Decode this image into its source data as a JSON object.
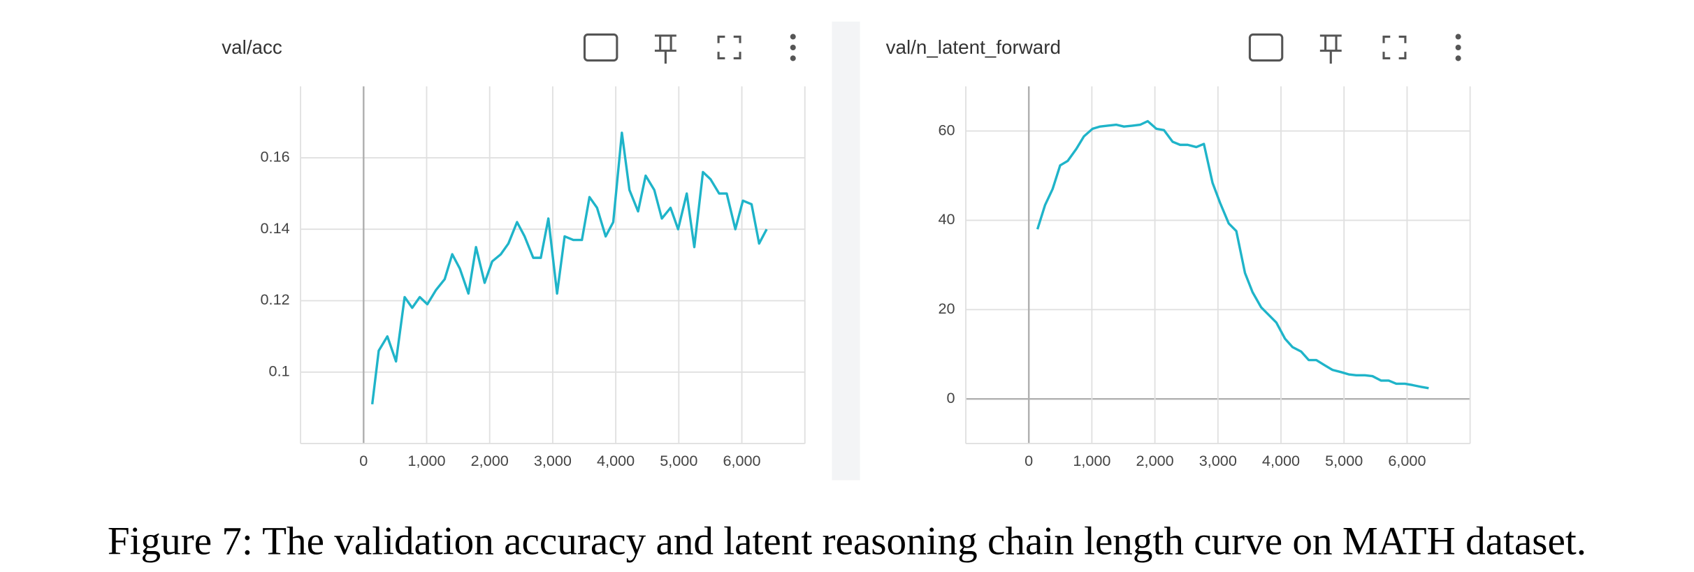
{
  "chart_data": [
    {
      "type": "line",
      "title": "val/acc",
      "color": "#1fb4c9",
      "grid": true,
      "x": [
        137,
        240,
        377,
        514,
        651,
        771,
        891,
        1011,
        1149,
        1286,
        1406,
        1526,
        1663,
        1783,
        1920,
        2040,
        2177,
        2297,
        2434,
        2554,
        2691,
        2811,
        2931,
        3069,
        3189,
        3326,
        3463,
        3583,
        3703,
        3840,
        3960,
        4097,
        4217,
        4354,
        4474,
        4611,
        4731,
        4869,
        4989,
        5126,
        5246,
        5383,
        5503,
        5640,
        5760,
        5897,
        6017,
        6154,
        6274,
        6394
      ],
      "values": [
        0.091,
        0.106,
        0.11,
        0.103,
        0.121,
        0.118,
        0.121,
        0.119,
        0.123,
        0.126,
        0.133,
        0.129,
        0.122,
        0.135,
        0.125,
        0.131,
        0.133,
        0.136,
        0.142,
        0.138,
        0.132,
        0.132,
        0.143,
        0.122,
        0.138,
        0.137,
        0.137,
        0.149,
        0.146,
        0.138,
        0.142,
        0.167,
        0.151,
        0.145,
        0.155,
        0.151,
        0.143,
        0.146,
        0.14,
        0.15,
        0.135,
        0.156,
        0.154,
        0.15,
        0.15,
        0.14,
        0.148,
        0.147,
        0.136,
        0.14
      ],
      "xlim": [
        -1000,
        7000
      ],
      "ylim": [
        0.08,
        0.18
      ],
      "xticks": [
        0,
        {
          "value": 1000,
          "label": "1,000"
        },
        {
          "value": 2000,
          "label": "2,000"
        },
        {
          "value": 3000,
          "label": "3,000"
        },
        {
          "value": 4000,
          "label": "4,000"
        },
        {
          "value": 5000,
          "label": "5,000"
        },
        {
          "value": 6000,
          "label": "6,000"
        }
      ],
      "yticks": [
        0.1,
        0.12,
        0.14,
        0.16
      ]
    },
    {
      "type": "line",
      "title": "val/n_latent_forward",
      "color": "#1fb4c9",
      "grid": true,
      "x": [
        137,
        257,
        377,
        497,
        617,
        754,
        874,
        1011,
        1131,
        1251,
        1389,
        1509,
        1646,
        1766,
        1886,
        2023,
        2143,
        2280,
        2400,
        2520,
        2657,
        2777,
        2914,
        3034,
        3171,
        3291,
        3429,
        3549,
        3686,
        3806,
        3926,
        4063,
        4183,
        4320,
        4440,
        4560,
        4697,
        4817,
        4954,
        5074,
        5194,
        5331,
        5451,
        5589,
        5709,
        5829,
        5966,
        6086,
        6223,
        6343
      ],
      "values": [
        38,
        43.4,
        47,
        52.3,
        53.3,
        56,
        58.8,
        60.5,
        61,
        61.2,
        61.4,
        61,
        61.2,
        61.4,
        62.2,
        60.5,
        60.2,
        57.6,
        56.9,
        56.9,
        56.4,
        57.1,
        48.4,
        43.9,
        39.3,
        37.6,
        28.2,
        23.9,
        20.5,
        18.8,
        17.1,
        13.5,
        11.6,
        10.6,
        8.7,
        8.7,
        7.5,
        6.5,
        6,
        5.5,
        5.3,
        5.3,
        5.1,
        4.1,
        4.1,
        3.4,
        3.4,
        3.1,
        2.7,
        2.4
      ],
      "xlim": [
        -1000,
        7000
      ],
      "ylim": [
        -10,
        70
      ],
      "xticks": [
        0,
        {
          "value": 1000,
          "label": "1,000"
        },
        {
          "value": 2000,
          "label": "2,000"
        },
        {
          "value": 3000,
          "label": "3,000"
        },
        {
          "value": 4000,
          "label": "4,000"
        },
        {
          "value": 5000,
          "label": "5,000"
        },
        {
          "value": 6000,
          "label": "6,000"
        }
      ],
      "yticks": [
        0,
        20,
        40,
        60
      ]
    }
  ],
  "caption": "Figure 7: The validation accuracy and latent reasoning chain length curve on MATH dataset."
}
